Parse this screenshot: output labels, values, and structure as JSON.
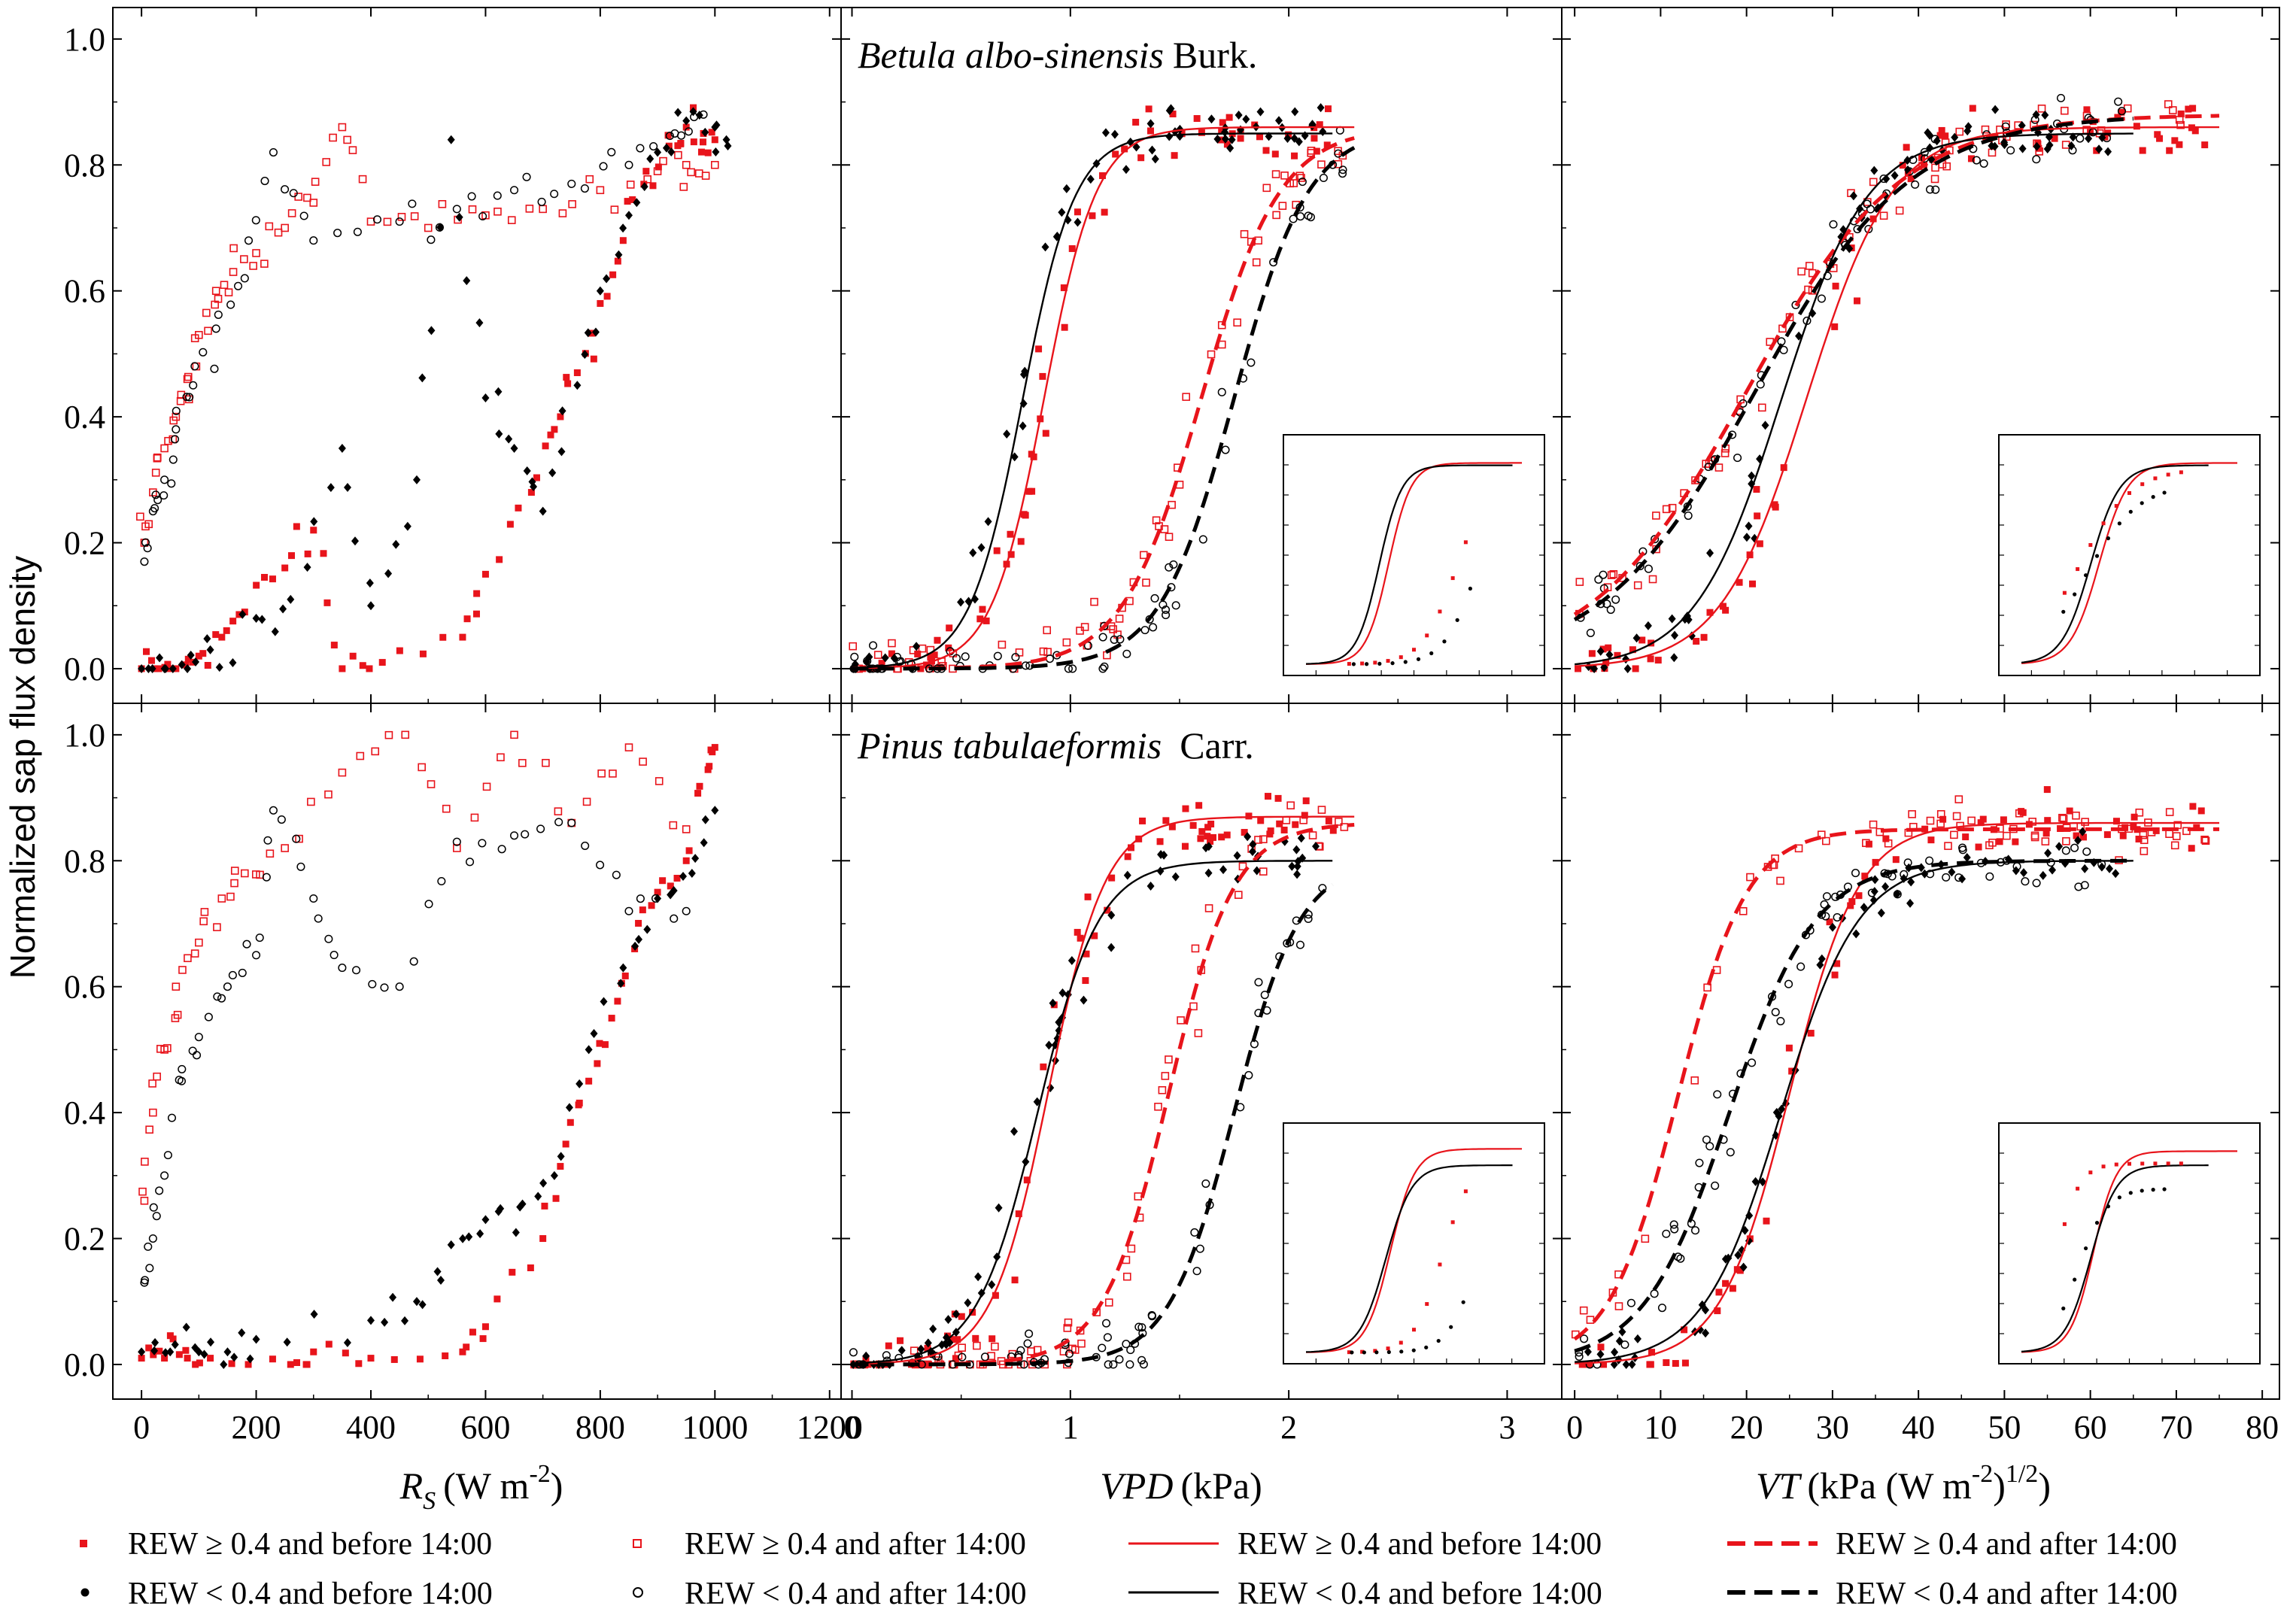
{
  "figure": {
    "y_axis_label": "Normalized sap flux density",
    "species": [
      {
        "genus_species": "Betula albo-sinensis",
        "author": "Burk."
      },
      {
        "genus_species": "Pinus tabulaeformis",
        "author": "Carr."
      }
    ],
    "x_axes": [
      {
        "symbol": "R",
        "subscript": "S",
        "units": "(W m",
        "units_sup": "-2",
        "units_end": ")",
        "range": [
          -50,
          1220
        ],
        "ticks": [
          0,
          200,
          400,
          600,
          800,
          1000,
          1200
        ]
      },
      {
        "symbol": "VPD",
        "units": "(kPa)",
        "range": [
          -0.05,
          3.25
        ],
        "ticks": [
          0,
          1,
          2,
          3
        ]
      },
      {
        "symbol": "VT",
        "units": "(kPa (W m",
        "units_sup": "-2",
        "units_end": ")",
        "units_sup2": "1/2",
        "units_end2": ")",
        "range": [
          -1.5,
          82
        ],
        "ticks": [
          0,
          10,
          20,
          30,
          40,
          50,
          60,
          70,
          80
        ]
      }
    ],
    "y_range": [
      -0.055,
      1.05
    ],
    "y_ticks": [
      "0.0",
      "0.2",
      "0.4",
      "0.6",
      "0.8",
      "1.0"
    ],
    "legend": [
      {
        "label": "REW ≥ 0.4 and before 14:00",
        "kind": "marker",
        "style": "red-filled"
      },
      {
        "label": "REW ≥ 0.4 and after 14:00",
        "kind": "marker",
        "style": "red-open"
      },
      {
        "label": "REW ≥ 0.4 and before 14:00",
        "kind": "line",
        "style": "red-solid"
      },
      {
        "label": "REW ≥ 0.4 and after 14:00",
        "kind": "line",
        "style": "red-dashed"
      },
      {
        "label": "REW < 0.4 and before 14:00",
        "kind": "marker",
        "style": "black-filled"
      },
      {
        "label": "REW < 0.4 and after 14:00",
        "kind": "marker",
        "style": "black-open"
      },
      {
        "label": "REW < 0.4 and before 14:00",
        "kind": "line",
        "style": "black-solid"
      },
      {
        "label": "REW < 0.4 and after 14:00",
        "kind": "line",
        "style": "black-dashed"
      }
    ],
    "colors": {
      "red": "#e8141b",
      "black": "#000000"
    }
  },
  "chart_data": [
    {
      "type": "scatter",
      "title": "Betula albo-sinensis Burk. — Rs",
      "xlabel": "Rs (W m-2)",
      "ylabel": "Normalized sap flux density",
      "xlim": [
        -50,
        1220
      ],
      "ylim": [
        -0.055,
        1.05
      ],
      "series": [
        {
          "name": "REW ≥ 0.4 and before 14:00",
          "x": [
            0,
            30,
            60,
            100,
            140,
            180,
            250,
            300,
            350,
            420,
            560,
            600,
            680,
            720,
            760,
            800,
            840,
            880,
            920,
            950,
            980,
            1000
          ],
          "y": [
            0.0,
            0.0,
            0.0,
            0.02,
            0.05,
            0.09,
            0.16,
            0.22,
            0.0,
            0.01,
            0.05,
            0.15,
            0.28,
            0.38,
            0.47,
            0.58,
            0.68,
            0.79,
            0.83,
            0.86,
            0.85,
            0.84
          ]
        },
        {
          "name": "REW ≥ 0.4 and after 14:00",
          "x": [
            5,
            20,
            40,
            60,
            80,
            100,
            130,
            160,
            200,
            250,
            300,
            350,
            400,
            500,
            600,
            700,
            800,
            900,
            950,
            1000
          ],
          "y": [
            0.2,
            0.28,
            0.35,
            0.4,
            0.46,
            0.53,
            0.6,
            0.63,
            0.66,
            0.7,
            0.74,
            0.86,
            0.71,
            0.7,
            0.72,
            0.73,
            0.76,
            0.79,
            0.8,
            0.8
          ]
        },
        {
          "name": "REW < 0.4 and before 14:00",
          "x": [
            0,
            40,
            80,
            120,
            200,
            260,
            350,
            400,
            480,
            540,
            600,
            650,
            700,
            760,
            800,
            850,
            900,
            950,
            1000,
            1020
          ],
          "y": [
            0.0,
            0.0,
            0.0,
            0.03,
            0.08,
            0.11,
            0.35,
            0.1,
            0.3,
            0.84,
            0.43,
            0.35,
            0.25,
            0.45,
            0.6,
            0.72,
            0.82,
            0.87,
            0.86,
            0.84
          ]
        },
        {
          "name": "REW < 0.4 and after 14:00",
          "x": [
            5,
            20,
            40,
            60,
            90,
            130,
            180,
            230,
            300,
            450,
            550,
            650,
            750,
            850,
            930,
            980
          ],
          "y": [
            0.17,
            0.25,
            0.3,
            0.38,
            0.45,
            0.54,
            0.62,
            0.82,
            0.68,
            0.71,
            0.73,
            0.76,
            0.77,
            0.8,
            0.85,
            0.88
          ]
        }
      ]
    },
    {
      "type": "scatter",
      "title": "Betula albo-sinensis Burk. — VPD",
      "xlabel": "VPD (kPa)",
      "ylabel": "Normalized sap flux density",
      "xlim": [
        -0.05,
        3.25
      ],
      "ylim": [
        -0.055,
        1.05
      ],
      "series": [
        {
          "name": "REW ≥ 0.4 and before 14:00 (fit)",
          "model": "sigmoid",
          "ymax": 0.86,
          "x0": 0.88,
          "k": 0.12,
          "xrange": [
            0.0,
            2.3
          ]
        },
        {
          "name": "REW ≥ 0.4 and after 14:00 (fit)",
          "model": "sigmoid",
          "ymax": 0.86,
          "x0": 1.6,
          "k": 0.18,
          "xrange": [
            0.0,
            2.3
          ]
        },
        {
          "name": "REW < 0.4 and before 14:00 (fit)",
          "model": "sigmoid",
          "ymax": 0.85,
          "x0": 0.78,
          "k": 0.12,
          "xrange": [
            0.0,
            2.2
          ]
        },
        {
          "name": "REW < 0.4 and after 14:00 (fit)",
          "model": "sigmoid",
          "ymax": 0.86,
          "x0": 1.75,
          "k": 0.17,
          "xrange": [
            0.0,
            2.3
          ]
        }
      ]
    },
    {
      "type": "scatter",
      "title": "Betula albo-sinensis Burk. — VT",
      "xlabel": "VT (kPa (W m-2)1/2)",
      "ylabel": "Normalized sap flux density",
      "xlim": [
        -1.5,
        82
      ],
      "ylim": [
        -0.055,
        1.05
      ],
      "series": [
        {
          "name": "REW ≥ 0.4 and before 14:00 (fit)",
          "model": "sigmoid",
          "ymax": 0.86,
          "x0": 27,
          "k": 5.0,
          "xrange": [
            0,
            75
          ]
        },
        {
          "name": "REW ≥ 0.4 and after 14:00 (fit)",
          "model": "sigmoid",
          "ymax": 0.88,
          "x0": 20,
          "k": 9.0,
          "xrange": [
            0,
            75
          ]
        },
        {
          "name": "REW < 0.4 and before 14:00 (fit)",
          "model": "sigmoid",
          "ymax": 0.85,
          "x0": 24,
          "k": 5.0,
          "xrange": [
            0,
            65
          ]
        },
        {
          "name": "REW < 0.4 and after 14:00 (fit)",
          "model": "sigmoid",
          "ymax": 0.88,
          "x0": 21,
          "k": 9.0,
          "xrange": [
            0,
            65
          ]
        }
      ]
    },
    {
      "type": "scatter",
      "title": "Pinus tabulaeformis Carr. — Rs",
      "xlabel": "Rs (W m-2)",
      "ylabel": "Normalized sap flux density",
      "xlim": [
        -50,
        1220
      ],
      "ylim": [
        -0.055,
        1.05
      ],
      "series": [
        {
          "name": "REW ≥ 0.4 and before 14:00",
          "x": [
            0,
            40,
            80,
            120,
            260,
            300,
            400,
            560,
            600,
            700,
            740,
            780,
            820,
            860,
            900,
            950,
            990,
            1000
          ],
          "y": [
            0.01,
            0.01,
            0.01,
            0.01,
            0.0,
            0.02,
            0.01,
            0.02,
            0.06,
            0.2,
            0.35,
            0.45,
            0.55,
            0.66,
            0.75,
            0.8,
            0.95,
            0.98
          ]
        },
        {
          "name": "REW ≥ 0.4 and after 14:00",
          "x": [
            5,
            20,
            40,
            60,
            100,
            140,
            180,
            250,
            350,
            460,
            550,
            650,
            750,
            850,
            950
          ],
          "y": [
            0.26,
            0.4,
            0.5,
            0.6,
            0.67,
            0.74,
            0.78,
            0.82,
            0.94,
            1.0,
            0.82,
            1.0,
            0.86,
            0.98,
            0.85
          ]
        },
        {
          "name": "REW < 0.4 and before 14:00",
          "x": [
            0,
            50,
            100,
            150,
            200,
            400,
            480,
            540,
            600,
            660,
            720,
            780,
            840,
            900,
            960,
            1000
          ],
          "y": [
            0.02,
            0.02,
            0.02,
            0.02,
            0.04,
            0.07,
            0.1,
            0.19,
            0.23,
            0.25,
            0.3,
            0.5,
            0.63,
            0.74,
            0.78,
            0.88
          ]
        },
        {
          "name": "REW < 0.4 and after 14:00",
          "x": [
            5,
            20,
            40,
            70,
            100,
            150,
            200,
            230,
            300,
            350,
            450,
            550,
            650,
            750,
            850,
            950
          ],
          "y": [
            0.13,
            0.2,
            0.3,
            0.45,
            0.52,
            0.6,
            0.65,
            0.88,
            0.74,
            0.63,
            0.6,
            0.83,
            0.84,
            0.86,
            0.72,
            0.72
          ]
        }
      ]
    },
    {
      "type": "scatter",
      "title": "Pinus tabulaeformis Carr. — VPD",
      "xlabel": "VPD (kPa)",
      "ylabel": "Normalized sap flux density",
      "xlim": [
        -0.05,
        3.25
      ],
      "ylim": [
        -0.055,
        1.05
      ],
      "series": [
        {
          "name": "REW ≥ 0.4 and before 14:00 (fit)",
          "model": "sigmoid",
          "ymax": 0.87,
          "x0": 0.9,
          "k": 0.13,
          "xrange": [
            0.0,
            2.3
          ]
        },
        {
          "name": "REW ≥ 0.4 and after 14:00 (fit)",
          "model": "sigmoid",
          "ymax": 0.86,
          "x0": 1.45,
          "k": 0.15,
          "xrange": [
            0.0,
            2.3
          ]
        },
        {
          "name": "REW < 0.4 and before 14:00 (fit)",
          "model": "sigmoid",
          "ymax": 0.8,
          "x0": 0.85,
          "k": 0.14,
          "xrange": [
            0.0,
            2.2
          ]
        },
        {
          "name": "REW < 0.4 and after 14:00 (fit)",
          "model": "sigmoid",
          "ymax": 0.8,
          "x0": 1.75,
          "k": 0.15,
          "xrange": [
            0.0,
            2.2
          ]
        }
      ]
    },
    {
      "type": "scatter",
      "title": "Pinus tabulaeformis Carr. — VT",
      "xlabel": "VT (kPa (W m-2)1/2)",
      "ylabel": "Normalized sap flux density",
      "xlim": [
        -1.5,
        82
      ],
      "ylim": [
        -0.055,
        1.05
      ],
      "series": [
        {
          "name": "REW ≥ 0.4 and before 14:00 (fit)",
          "model": "sigmoid",
          "ymax": 0.86,
          "x0": 25,
          "k": 4.0,
          "xrange": [
            0,
            75
          ]
        },
        {
          "name": "REW ≥ 0.4 and after 14:00 (fit)",
          "model": "sigmoid",
          "ymax": 0.85,
          "x0": 12,
          "k": 4.0,
          "xrange": [
            0,
            75
          ]
        },
        {
          "name": "REW < 0.4 and before 14:00 (fit)",
          "model": "sigmoid",
          "ymax": 0.8,
          "x0": 24,
          "k": 4.5,
          "xrange": [
            0,
            65
          ]
        },
        {
          "name": "REW < 0.4 and after 14:00 (fit)",
          "model": "sigmoid",
          "ymax": 0.8,
          "x0": 18,
          "k": 5.0,
          "xrange": [
            0,
            65
          ]
        }
      ]
    }
  ]
}
